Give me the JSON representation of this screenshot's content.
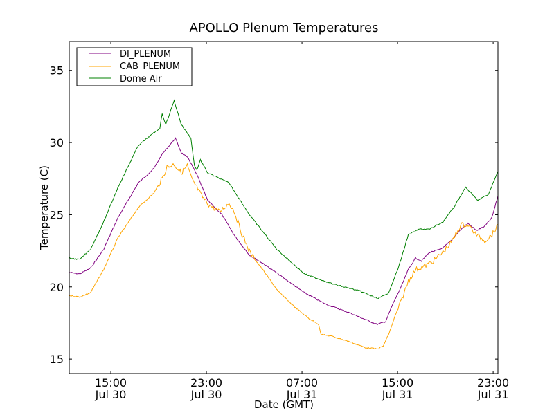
{
  "chart_data": {
    "type": "line",
    "title": "APOLLO Plenum Temperatures",
    "xlabel": "Date (GMT)",
    "ylabel": "Temperature (C)",
    "x_units": "hours since 00:00 Jul 30 (GMT)",
    "xlim": [
      11.52,
      47.4
    ],
    "ylim": [
      14,
      37
    ],
    "yticks": [
      15,
      20,
      25,
      30,
      35
    ],
    "xticks": [
      {
        "x": 15,
        "line1": "15:00",
        "line2": "Jul 30"
      },
      {
        "x": 23,
        "line1": "23:00",
        "line2": "Jul 30"
      },
      {
        "x": 31,
        "line1": "07:00",
        "line2": "Jul 31"
      },
      {
        "x": 39,
        "line1": "15:00",
        "line2": "Jul 31"
      },
      {
        "x": 47,
        "line1": "23:00",
        "line2": "Jul 31"
      }
    ],
    "grid": false,
    "legend": {
      "position": "top-left"
    },
    "series": [
      {
        "name": "DI_PLENUM",
        "color": "#800080",
        "x": [
          11.52,
          12.4,
          13.3,
          14.4,
          15.6,
          17.3,
          18.6,
          19.3,
          19.9,
          20.4,
          20.9,
          21.5,
          22.3,
          23.1,
          24.3,
          25.4,
          26.6,
          27.8,
          29.5,
          31.2,
          33.0,
          35.0,
          36.7,
          37.3,
          38.0,
          38.6,
          39.3,
          39.9,
          40.5,
          41.0,
          41.7,
          42.6,
          43.5,
          44.3,
          44.9,
          45.6,
          46.3,
          46.9,
          47.4
        ],
        "y": [
          21.0,
          20.9,
          21.3,
          22.6,
          24.8,
          27.2,
          28.2,
          29.2,
          29.8,
          30.3,
          29.3,
          28.9,
          27.6,
          26.0,
          25.0,
          23.5,
          22.2,
          21.6,
          20.6,
          19.6,
          18.8,
          18.2,
          17.6,
          17.4,
          17.6,
          18.8,
          20.0,
          21.2,
          22.0,
          21.8,
          22.4,
          22.6,
          23.2,
          24.0,
          24.4,
          23.9,
          24.2,
          24.8,
          26.3
        ]
      },
      {
        "name": "CAB_PLENUM",
        "color": "#FFA500",
        "x": [
          11.52,
          12.4,
          13.3,
          14.4,
          15.6,
          17.3,
          18.6,
          19.3,
          19.7,
          20.3,
          20.9,
          21.4,
          21.8,
          22.2,
          22.6,
          23.2,
          24.1,
          24.9,
          25.3,
          26.0,
          26.7,
          27.8,
          29.0,
          30.4,
          31.6,
          32.4,
          32.6,
          33.4,
          35.0,
          36.3,
          37.3,
          37.8,
          38.3,
          38.8,
          39.3,
          39.9,
          40.5,
          41.2,
          42.0,
          42.8,
          43.6,
          44.3,
          44.9,
          45.6,
          46.3,
          46.9,
          47.4
        ],
        "y": [
          19.4,
          19.3,
          19.6,
          21.2,
          23.4,
          25.5,
          26.5,
          27.5,
          28.3,
          28.5,
          27.9,
          28.4,
          27.4,
          26.9,
          26.3,
          25.7,
          25.2,
          25.8,
          25.3,
          23.6,
          22.3,
          21.1,
          19.7,
          18.6,
          17.8,
          17.4,
          16.7,
          16.6,
          16.2,
          15.8,
          15.7,
          15.9,
          16.8,
          18.0,
          19.0,
          20.4,
          21.2,
          21.4,
          21.8,
          22.4,
          23.2,
          24.3,
          24.3,
          23.6,
          23.2,
          23.6,
          24.3
        ]
      },
      {
        "name": "Dome Air",
        "color": "#008000",
        "x": [
          11.52,
          12.4,
          13.3,
          14.4,
          15.6,
          17.3,
          19.1,
          19.3,
          19.6,
          20.3,
          20.9,
          21.7,
          22.0,
          22.2,
          22.5,
          23.1,
          24.9,
          26.6,
          28.9,
          31.2,
          33.6,
          35.9,
          37.3,
          38.2,
          39.1,
          39.9,
          40.8,
          41.7,
          42.8,
          43.7,
          44.7,
          45.7,
          46.6,
          47.4
        ],
        "y": [
          22.0,
          21.9,
          22.6,
          24.5,
          26.9,
          29.8,
          31.0,
          32.0,
          31.25,
          32.9,
          31.25,
          30.3,
          28.4,
          28.1,
          28.8,
          27.9,
          27.2,
          25.0,
          22.6,
          20.9,
          20.2,
          19.7,
          19.2,
          19.5,
          21.4,
          23.6,
          24.0,
          24.0,
          24.5,
          25.5,
          26.9,
          26.0,
          26.4,
          28.0
        ]
      }
    ]
  }
}
